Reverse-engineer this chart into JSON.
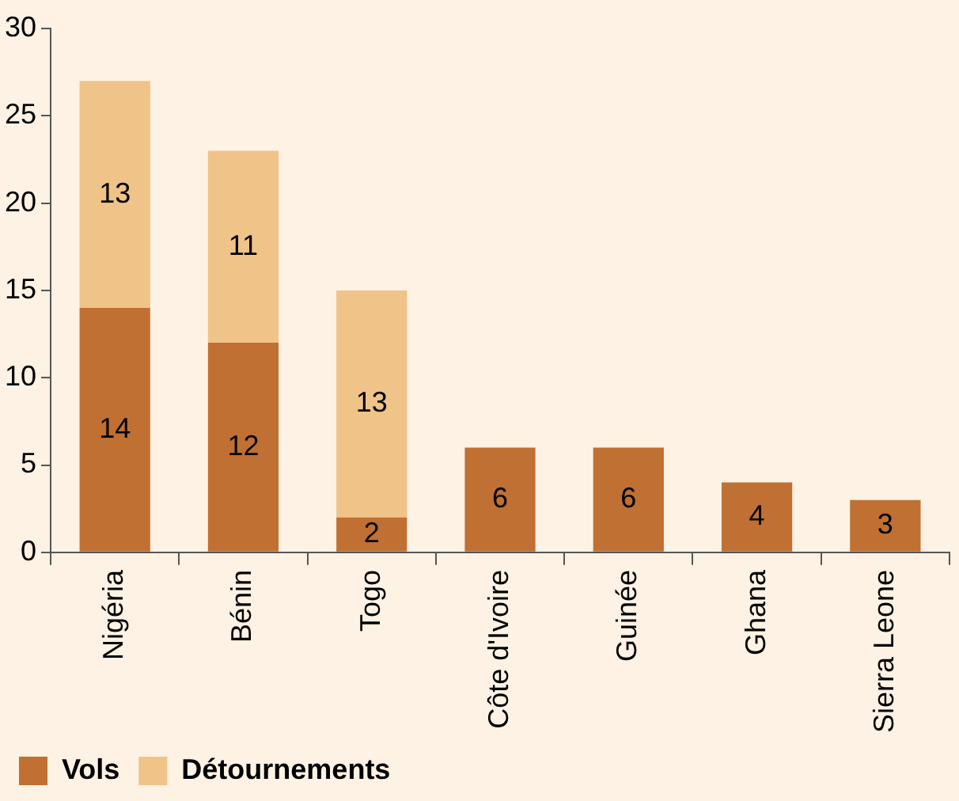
{
  "chart_data": {
    "type": "bar",
    "stacked": true,
    "categories": [
      "Nigéria",
      "Bénin",
      "Togo",
      "Côte d'Ivoire",
      "Guinée",
      "Ghana",
      "Sierra Leone"
    ],
    "series": [
      {
        "name": "Vols",
        "color": "#c07032",
        "values": [
          14,
          12,
          2,
          6,
          6,
          4,
          3
        ]
      },
      {
        "name": "Détournements",
        "color": "#f0c388",
        "values": [
          13,
          11,
          13,
          null,
          null,
          null,
          null
        ]
      }
    ],
    "ylim": [
      0,
      30
    ],
    "yticks": [
      0,
      5,
      10,
      15,
      20,
      25,
      30
    ],
    "grid": false,
    "legend": "bottom",
    "data_labels": true
  }
}
